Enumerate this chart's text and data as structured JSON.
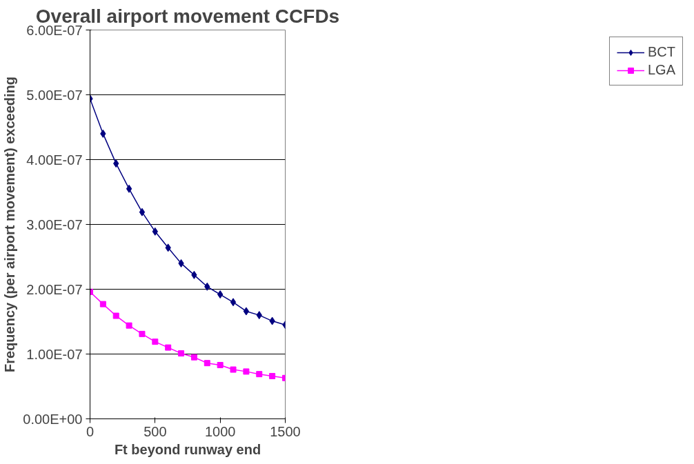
{
  "chart_data": {
    "type": "line",
    "title": "Overall airport movement CCFDs",
    "xlabel": "Ft beyond runway end",
    "ylabel": "Frequency (per airport movement) exceeding",
    "x": [
      0,
      100,
      200,
      300,
      400,
      500,
      600,
      700,
      800,
      900,
      1000,
      1100,
      1200,
      1300,
      1400,
      1500
    ],
    "series": [
      {
        "name": "BCT",
        "color": "#000080",
        "marker": "diamond",
        "values": [
          4.94e-07,
          4.4e-07,
          3.94e-07,
          3.55e-07,
          3.19e-07,
          2.89e-07,
          2.64e-07,
          2.4e-07,
          2.22e-07,
          2.04e-07,
          1.92e-07,
          1.8e-07,
          1.66e-07,
          1.6e-07,
          1.51e-07,
          1.45e-07
        ]
      },
      {
        "name": "LGA",
        "color": "#ff00ff",
        "marker": "square",
        "values": [
          1.96e-07,
          1.77e-07,
          1.59e-07,
          1.44e-07,
          1.31e-07,
          1.19e-07,
          1.1e-07,
          1.01e-07,
          9.5e-08,
          8.6e-08,
          8.3e-08,
          7.6e-08,
          7.3e-08,
          6.9e-08,
          6.6e-08,
          6.3e-08
        ]
      }
    ],
    "xlim": [
      0,
      1500
    ],
    "xticks": [
      0,
      500,
      1000,
      1500
    ],
    "ylim": [
      0,
      6e-07
    ],
    "yticks": [
      {
        "value": 0,
        "label": "0.00E+00"
      },
      {
        "value": 1e-07,
        "label": "1.00E-07"
      },
      {
        "value": 2e-07,
        "label": "2.00E-07"
      },
      {
        "value": 3e-07,
        "label": "3.00E-07"
      },
      {
        "value": 4e-07,
        "label": "4.00E-07"
      },
      {
        "value": 5e-07,
        "label": "5.00E-07"
      },
      {
        "value": 6e-07,
        "label": "6.00E-07"
      }
    ],
    "grid": "y",
    "legend": "right",
    "line_style": "solid"
  }
}
